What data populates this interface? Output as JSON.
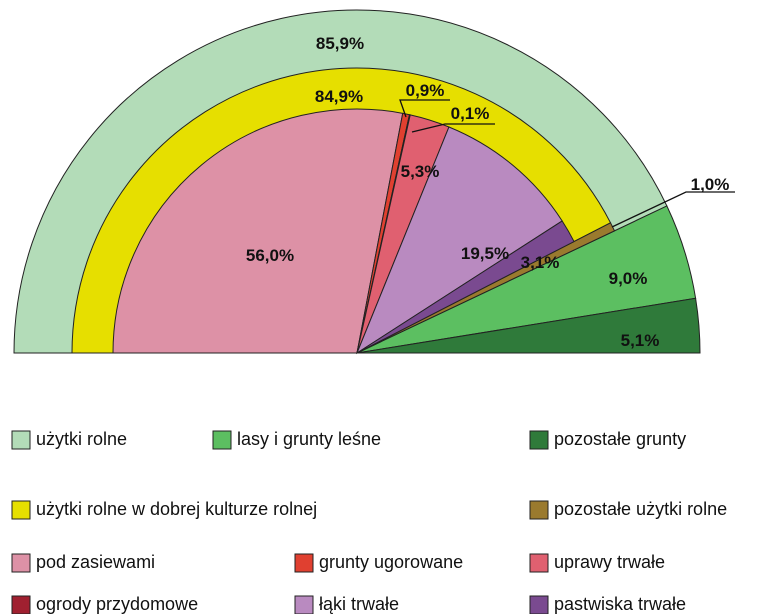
{
  "chart_data": {
    "type": "pie",
    "half": true,
    "rings": [
      {
        "categories": [
          "użytki rolne",
          "lasy i grunty leśne",
          "pozostałe grunty"
        ],
        "values": [
          85.9,
          9.0,
          5.1
        ],
        "value_labels": [
          "85,9%",
          "9,0%",
          "5,1%"
        ],
        "colors": [
          "#b3dcb8",
          "#5cbf61",
          "#2f7a3a"
        ]
      },
      {
        "categories": [
          "użytki rolne w dobrej kulturze rolnej",
          "pozostałe użytki rolne"
        ],
        "values": [
          84.9,
          1.0
        ],
        "value_labels": [
          "84,9%",
          "1,0%"
        ],
        "colors": [
          "#e6df00",
          "#9a7a2e"
        ]
      },
      {
        "categories": [
          "pod zasiewami",
          "grunty ugorowane",
          "ogrody przydomowe",
          "uprawy trwałe",
          "łąki trwałe",
          "pastwiska trwałe"
        ],
        "values": [
          56.0,
          0.9,
          0.1,
          5.3,
          19.5,
          3.1
        ],
        "value_labels": [
          "56,0%",
          "0,9%",
          "0,1%",
          "5,3%",
          "19,5%",
          "3,1%"
        ],
        "colors": [
          "#dd91a6",
          "#e04030",
          "#a02030",
          "#e06070",
          "#b98ac0",
          "#7a4a90"
        ]
      }
    ]
  }
}
